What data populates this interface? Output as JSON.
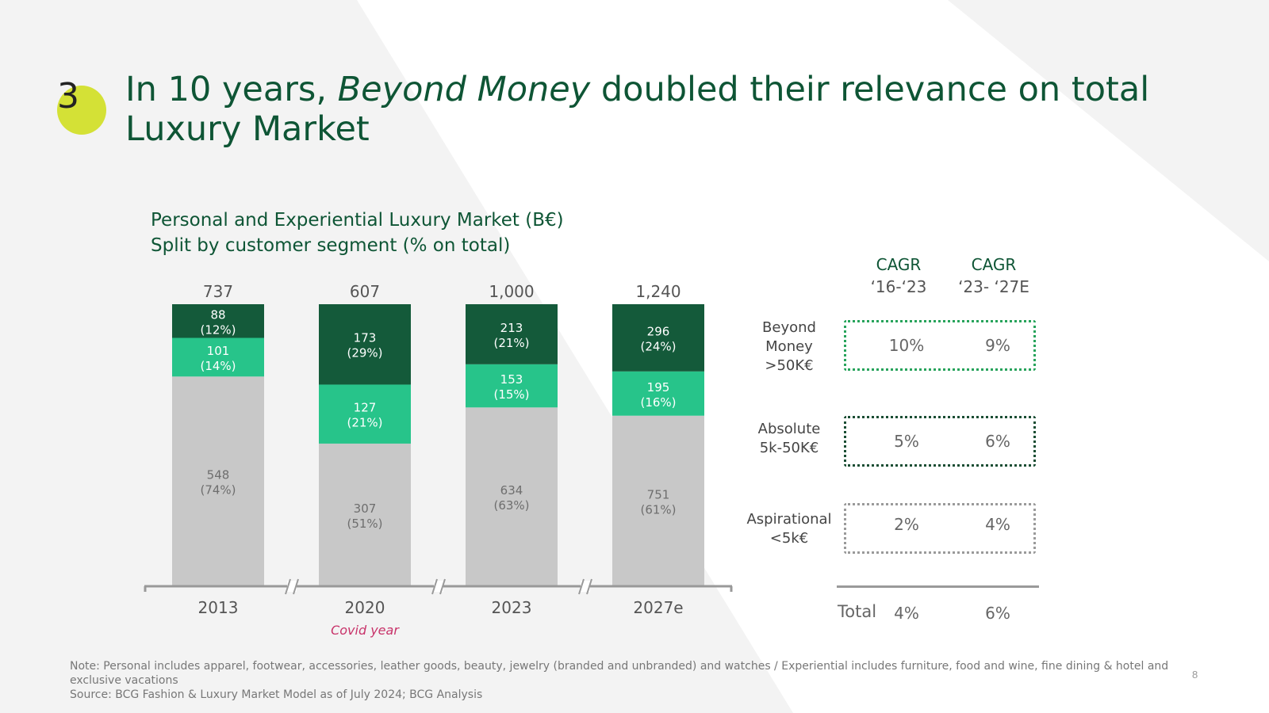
{
  "slide": {
    "number": "3",
    "title_part1": "In 10 years, ",
    "title_italic": "Beyond Money",
    "title_part2": " doubled their relevance on total Luxury Market",
    "subtitle_line1": "Personal and Experiential Luxury Market (B€)",
    "subtitle_line2": "Split by customer segment (% on total)",
    "page_number": "8"
  },
  "colors": {
    "beyond_money": "#145a3a",
    "absolute": "#27c48a",
    "aspirational": "#c8c8c8",
    "title": "#0e5535",
    "covid": "#c8336a"
  },
  "chart_data": {
    "type": "bar",
    "stacked": true,
    "unit": "B€",
    "categories": [
      "2013",
      "2020",
      "2023",
      "2027e"
    ],
    "totals": [
      "737",
      "607",
      "1,000",
      "1,240"
    ],
    "series": [
      {
        "name": "Aspirational",
        "values": [
          548,
          307,
          634,
          751
        ],
        "shares": [
          "(74%)",
          "(51%)",
          "(63%)",
          "(61%)"
        ]
      },
      {
        "name": "Absolute",
        "values": [
          101,
          127,
          153,
          195
        ],
        "shares": [
          "(14%)",
          "(21%)",
          "(15%)",
          "(16%)"
        ]
      },
      {
        "name": "Beyond Money",
        "values": [
          88,
          173,
          213,
          296
        ],
        "shares": [
          "(12%)",
          "(29%)",
          "(21%)",
          "(24%)"
        ]
      }
    ],
    "annotations": {
      "covid_note": "Covid year",
      "covid_category": "2020"
    }
  },
  "cagr": {
    "header1": {
      "label": "CAGR",
      "years": "‘16-‘23"
    },
    "header2": {
      "label": "CAGR",
      "years": "‘23- ‘27E"
    },
    "segments": [
      {
        "label_lines": [
          "Beyond",
          "Money",
          ">50K€"
        ],
        "cagr_16_23": "10%",
        "cagr_23_27": "9%"
      },
      {
        "label_lines": [
          "Absolute",
          "5k-50K€"
        ],
        "cagr_16_23": "5%",
        "cagr_23_27": "6%"
      },
      {
        "label_lines": [
          "Aspirational",
          "<5k€"
        ],
        "cagr_16_23": "2%",
        "cagr_23_27": "4%"
      }
    ],
    "total": {
      "label": "Total",
      "cagr_16_23": "4%",
      "cagr_23_27": "6%"
    }
  },
  "footer": {
    "note": "Note: Personal includes apparel, footwear, accessories, leather goods, beauty, jewelry (branded and unbranded) and watches / Experiential includes furniture, food and wine, fine dining & hotel and exclusive vacations",
    "source": "Source: BCG Fashion & Luxury Market Model as of July 2024; BCG Analysis"
  }
}
